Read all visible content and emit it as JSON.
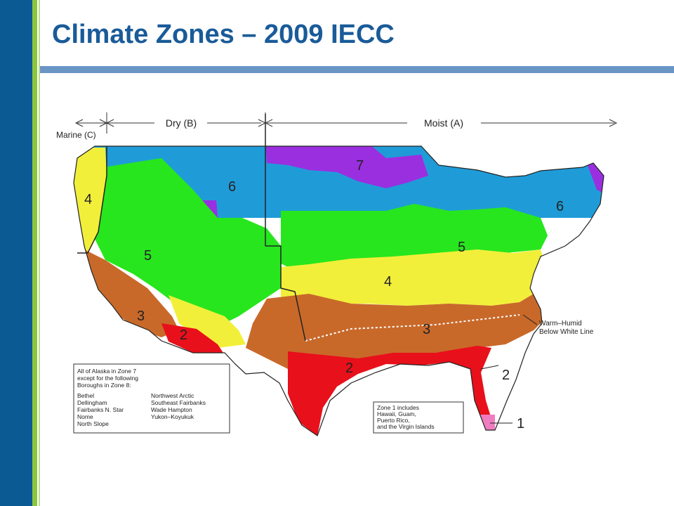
{
  "slide": {
    "title": "Climate Zones – 2009 IECC",
    "accent_band": "#0b5a94",
    "accent_stripe": "#8cc63e",
    "rule_color": "#6a96c6"
  },
  "map": {
    "header": {
      "marine": "Marine (C)",
      "dry": "Dry (B)",
      "moist": "Moist (A)"
    },
    "zone_colors": {
      "1": "#f07cc0",
      "2": "#e8101a",
      "3": "#c8692a",
      "4": "#f2ef3a",
      "5": "#27e61e",
      "6": "#1f9cd8",
      "7": "#9a2fe0"
    },
    "zone_labels": {
      "z4_west": "4",
      "z5_west": "5",
      "z6_west": "6",
      "z7": "7",
      "z6_east": "6",
      "z5_east": "5",
      "z4_east": "4",
      "z3_west": "3",
      "z2_az": "2",
      "z3_east": "3",
      "z2_gulf": "2",
      "z2_fl": "2",
      "z1_fl": "1"
    },
    "warm_humid_note": [
      "Warm–Humid",
      "Below White Line"
    ],
    "alaska_note": {
      "intro": [
        "All of Alaska in Zone 7",
        "except for the following",
        "Boroughs in Zone 8:"
      ],
      "col1": [
        "Bethel",
        "Dellingham",
        "Fairbanks N. Star",
        "Nome",
        "North Slope"
      ],
      "col2": [
        "Northwest Arctic",
        "Southeast Fairbanks",
        "Wade Hampton",
        "Yukon–Koyukuk"
      ]
    },
    "zone1_note": [
      "Zone 1 includes",
      "Hawaii, Guam,",
      "Puerto Rico,",
      "and the Virgin Islands"
    ]
  }
}
